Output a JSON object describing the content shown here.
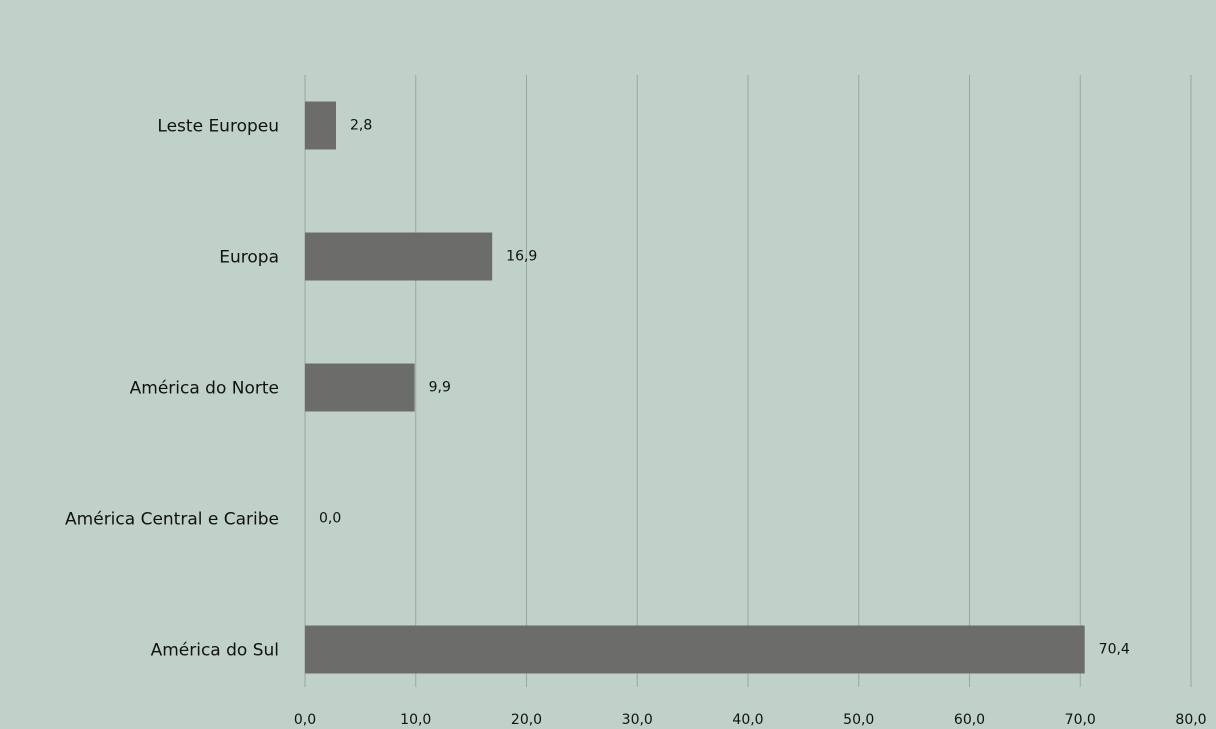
{
  "chart_data": {
    "type": "bar",
    "orientation": "horizontal",
    "categories": [
      "Leste Europeu",
      "Europa",
      "América do Norte",
      "América Central e Caribe",
      "América do Sul"
    ],
    "values": [
      2.8,
      16.9,
      9.9,
      0.0,
      70.4
    ],
    "data_labels": [
      "2,8",
      "16,9",
      "9,9",
      "0,0",
      "70,4"
    ],
    "xlim": [
      0,
      80
    ],
    "ticks": [
      0,
      10,
      20,
      30,
      40,
      50,
      60,
      70,
      80
    ],
    "tick_labels": [
      "0,0",
      "10,0",
      "20,0",
      "30,0",
      "40,0",
      "50,0",
      "60,0",
      "70,0",
      "80,0"
    ],
    "grid": true,
    "legend": "none",
    "colors": {
      "background": "#bfd1c8",
      "bar": "#6c6d6b",
      "grid": "#9aa7a0",
      "text": "#111111"
    }
  }
}
